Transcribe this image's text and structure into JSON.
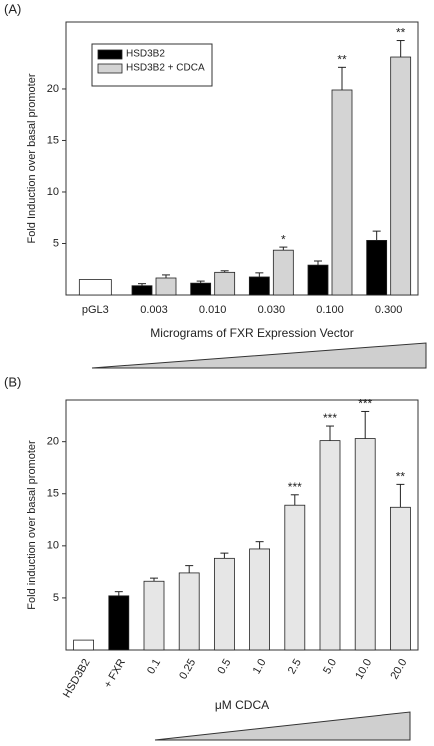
{
  "chart_data": [
    {
      "type": "bar",
      "panel": "(A)",
      "x_label": "Micrograms of FXR Expression Vector",
      "y_label": "Fold Induction over basal promoter",
      "categories": [
        "pGL3",
        "0.003",
        "0.010",
        "0.030",
        "0.100",
        "0.300"
      ],
      "control": {
        "value": 1.5,
        "color": "#ffffff"
      },
      "series": [
        {
          "name": "HSD3B2",
          "color": "#000000",
          "values": [
            null,
            0.9,
            1.15,
            1.75,
            2.9,
            5.3
          ],
          "errors": [
            null,
            0.2,
            0.2,
            0.4,
            0.4,
            0.9
          ],
          "significance": [
            null,
            null,
            null,
            null,
            null,
            null
          ]
        },
        {
          "name": "HSD3B2 + CDCA",
          "color": "#d4d4d4",
          "values": [
            null,
            1.65,
            2.2,
            4.35,
            19.9,
            23.1
          ],
          "errors": [
            null,
            0.3,
            0.15,
            0.3,
            2.2,
            1.6
          ],
          "significance": [
            null,
            null,
            null,
            "*",
            "**",
            "**"
          ]
        }
      ],
      "ylim": [
        0,
        26.5
      ],
      "yticks": [
        5,
        10,
        15,
        20
      ],
      "legend": "upper left"
    },
    {
      "type": "bar",
      "panel": "(B)",
      "x_label": "μM CDCA",
      "y_label": "Fold induction over basal promoter",
      "categories": [
        "HSD3B2",
        "+ FXR",
        "0.1",
        "0.25",
        "0.5",
        "1.0",
        "2.5",
        "5.0",
        "10.0",
        "20.0"
      ],
      "series": [
        {
          "colors": [
            "#ffffff",
            "#000000",
            "#e6e6e6",
            "#e6e6e6",
            "#e6e6e6",
            "#e6e6e6",
            "#e6e6e6",
            "#e6e6e6",
            "#e6e6e6",
            "#e6e6e6"
          ],
          "values": [
            0.95,
            5.2,
            6.6,
            7.4,
            8.8,
            9.7,
            13.9,
            20.1,
            20.3,
            13.7
          ],
          "errors": [
            null,
            0.4,
            0.3,
            0.7,
            0.5,
            0.7,
            1.0,
            1.4,
            2.6,
            2.2
          ],
          "significance": [
            null,
            null,
            null,
            null,
            null,
            null,
            "***",
            "***",
            "***",
            "**"
          ]
        }
      ],
      "ylim": [
        0,
        24
      ],
      "yticks": [
        5,
        10,
        15,
        20
      ]
    }
  ]
}
